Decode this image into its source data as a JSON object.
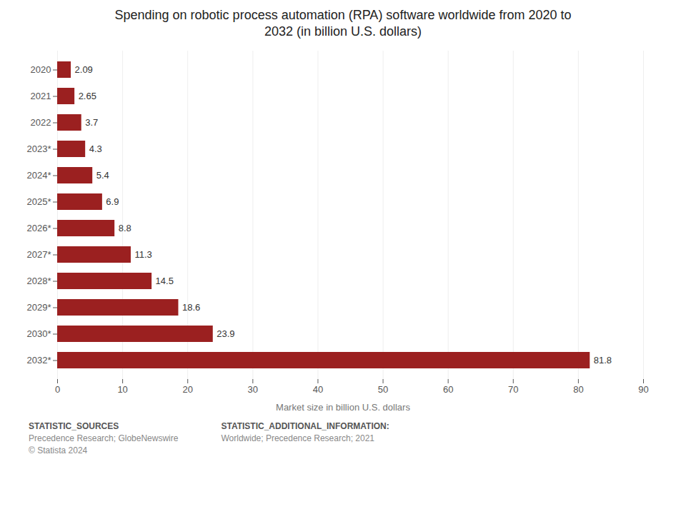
{
  "chart_data": {
    "type": "bar",
    "orientation": "horizontal",
    "title": "Spending on robotic process automation (RPA) software worldwide from 2020 to\n2032 (in billion U.S. dollars)",
    "categories": [
      "2020",
      "2021",
      "2022",
      "2023*",
      "2024*",
      "2025*",
      "2026*",
      "2027*",
      "2028*",
      "2029*",
      "2030*",
      "2032*"
    ],
    "values": [
      2.09,
      2.65,
      3.7,
      4.3,
      5.4,
      6.9,
      8.8,
      11.3,
      14.5,
      18.6,
      23.9,
      81.8
    ],
    "color": "#9B2020",
    "xlabel": "Market size in billion U.S. dollars",
    "xlim": [
      0,
      90
    ],
    "xticks": [
      0,
      10,
      20,
      30,
      40,
      50,
      60,
      70,
      80,
      90
    ],
    "grid": true,
    "data_labels": true,
    "annotations": [
      "STATISTIC_SOURCES",
      "Precedence Research; GlobeNewswire",
      "© Statista 2024",
      "STATISTIC_ADDITIONAL_INFORMATION:",
      "Worldwide; Precedence Research; 2021"
    ]
  }
}
